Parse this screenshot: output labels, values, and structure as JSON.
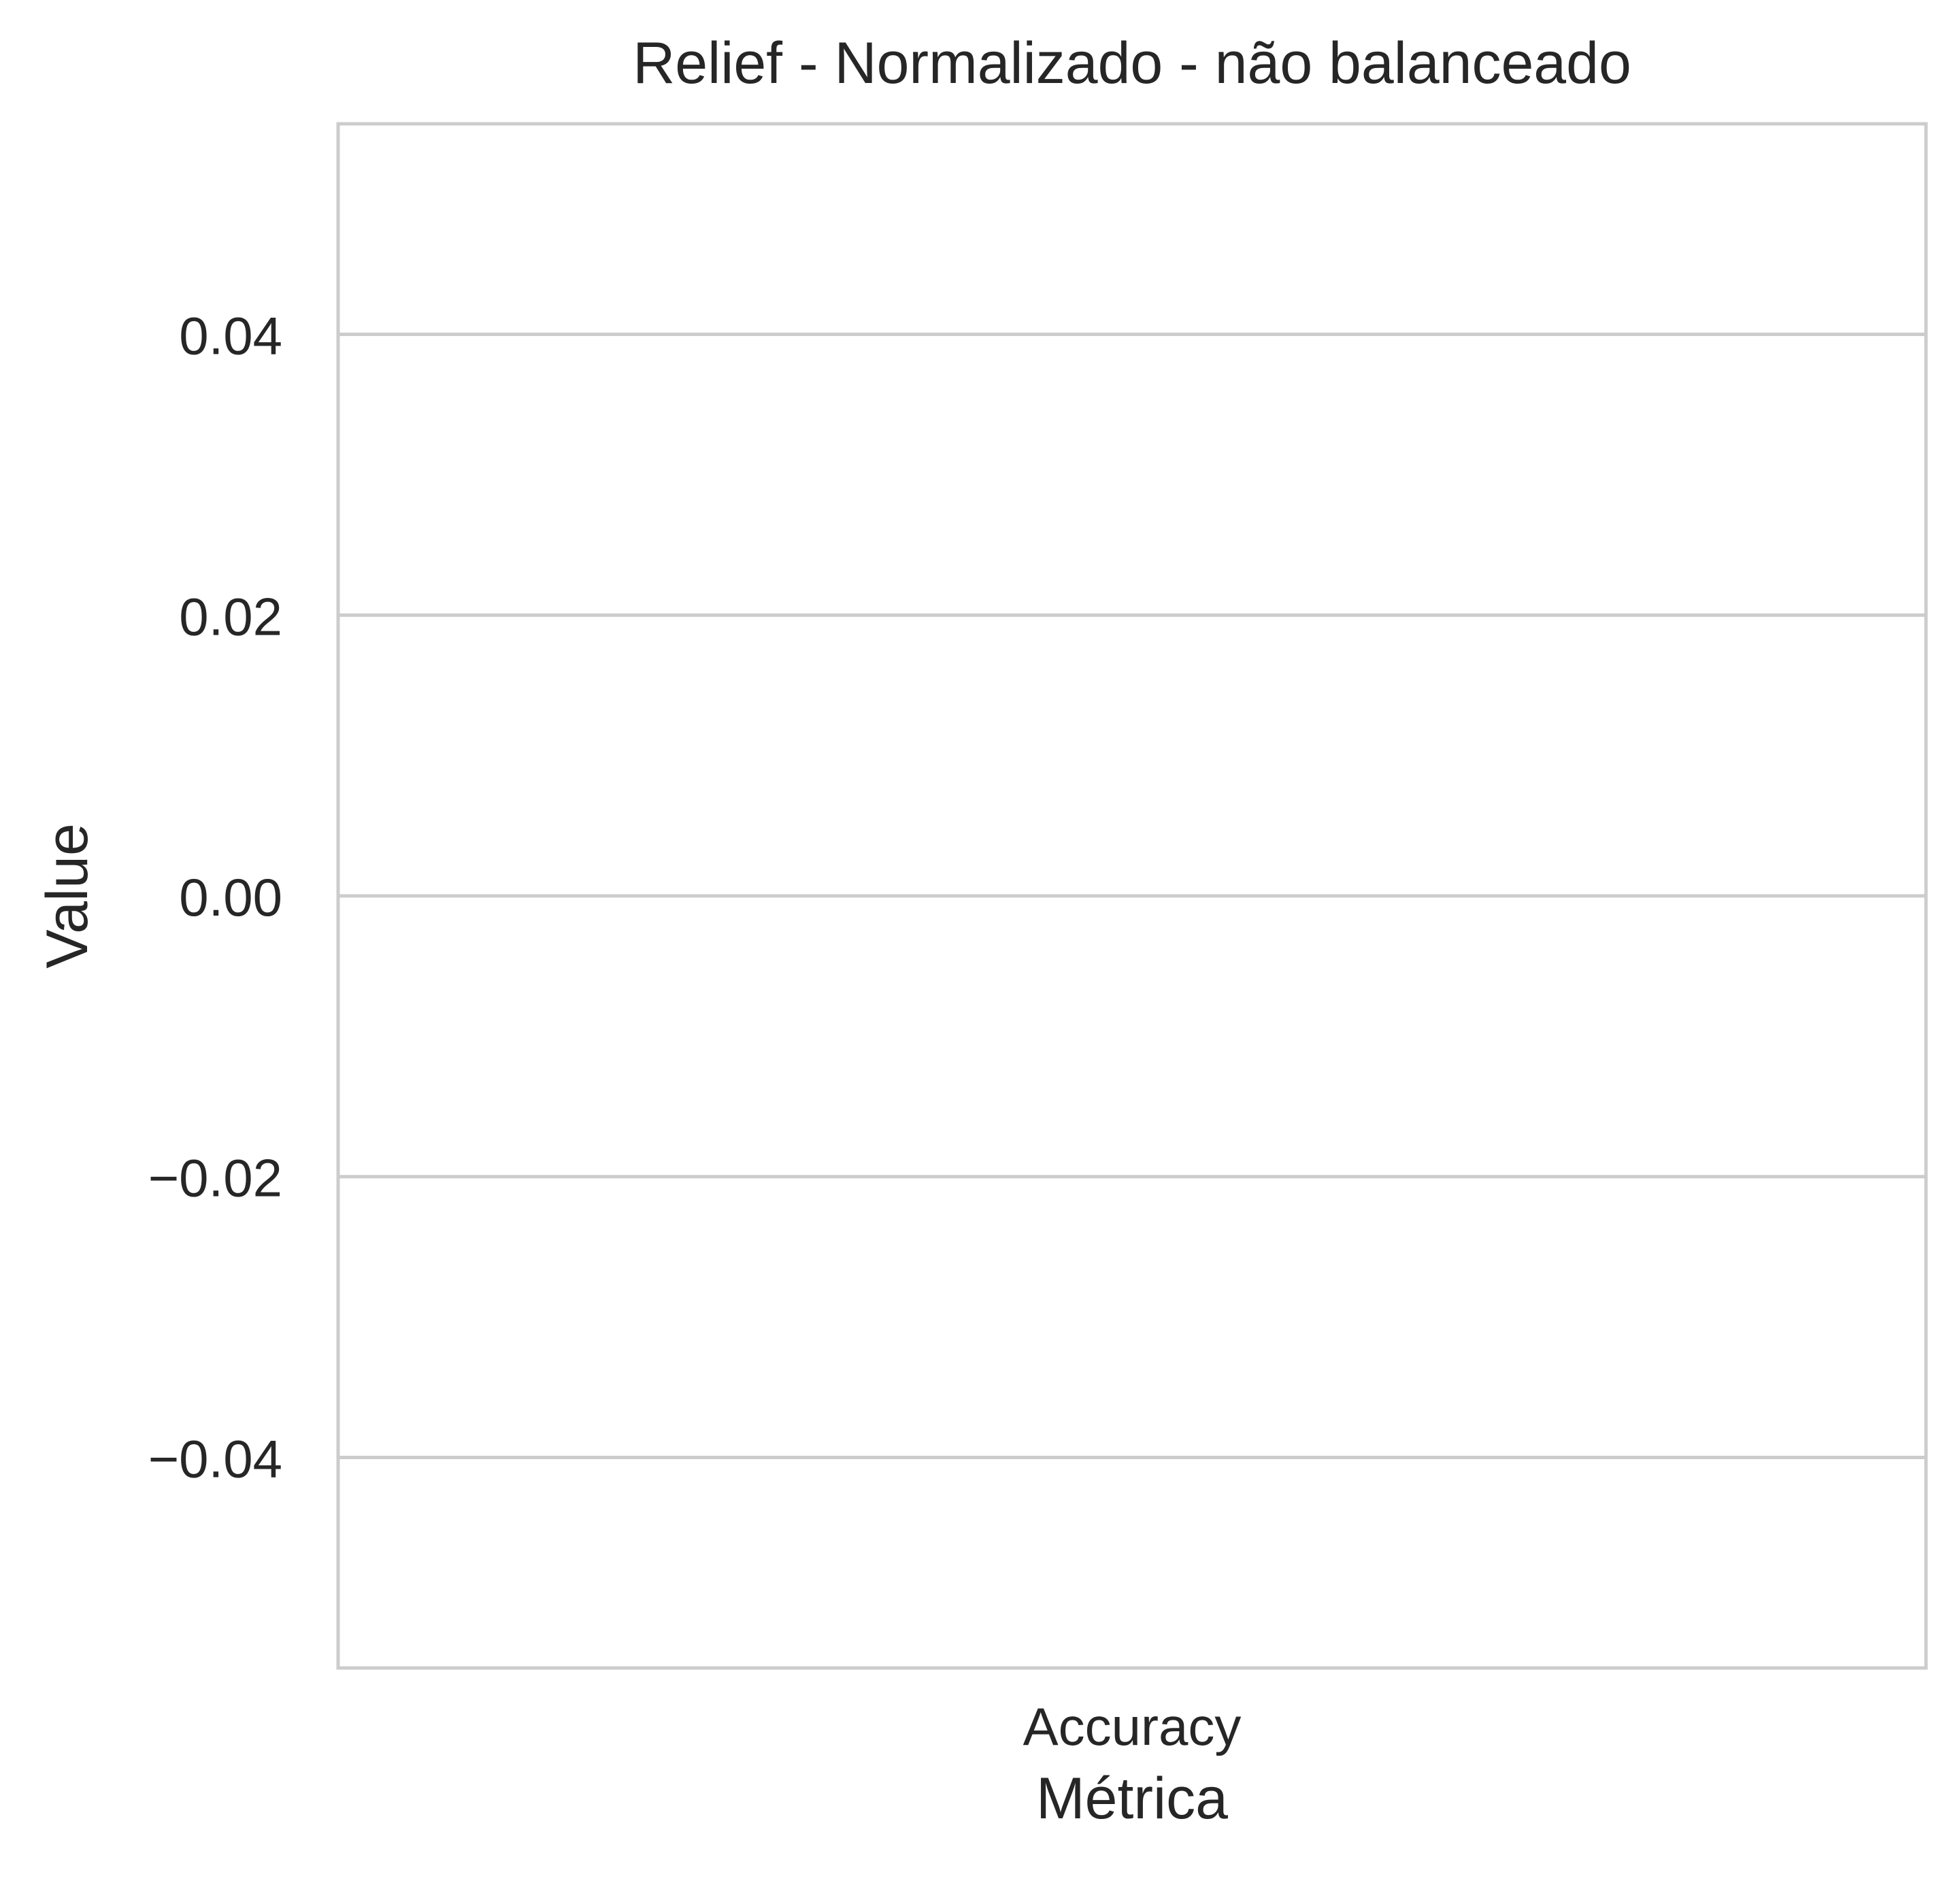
{
  "chart_data": {
    "type": "bar",
    "title": "Relief - Normalizado - não balanceado",
    "xlabel": "Métrica",
    "ylabel": "Value",
    "categories": [
      "Accuracy"
    ],
    "values": [
      0.0
    ],
    "ylim": [
      -0.055,
      0.055
    ],
    "yticks": [
      0.04,
      0.02,
      0.0,
      -0.02,
      -0.04
    ],
    "ytick_labels": [
      "0.04",
      "0.02",
      "0.00",
      "−0.02",
      "−0.04"
    ],
    "grid": "horizontal",
    "colors": {
      "grid": "#cccccc",
      "frame": "#cccccc",
      "text": "#262626",
      "bar": "#4c72b0"
    }
  }
}
